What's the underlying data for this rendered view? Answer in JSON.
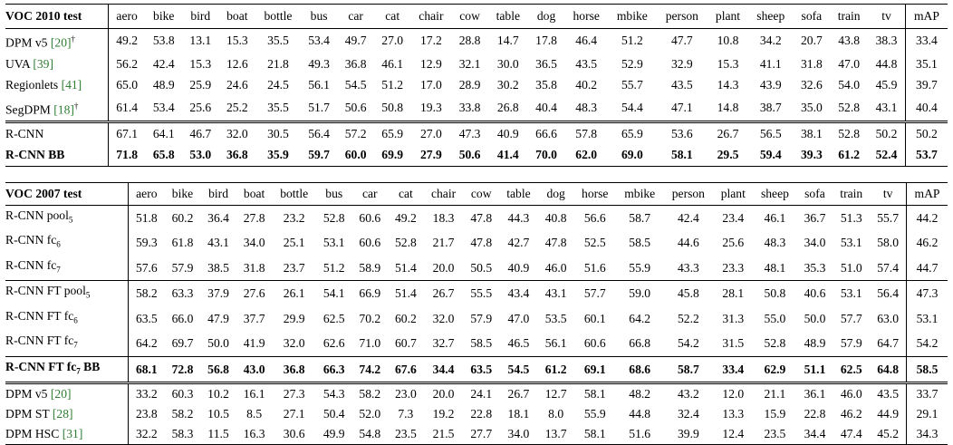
{
  "table1": {
    "title": "VOC 2010 test",
    "columns": [
      "aero",
      "bike",
      "bird",
      "boat",
      "bottle",
      "bus",
      "car",
      "cat",
      "chair",
      "cow",
      "table",
      "dog",
      "horse",
      "mbike",
      "person",
      "plant",
      "sheep",
      "sofa",
      "train",
      "tv"
    ],
    "map_label": "mAP",
    "rows": [
      {
        "method": "DPM v5",
        "ref": "[20]",
        "mark": "†",
        "values": [
          "49.2",
          "53.8",
          "13.1",
          "15.3",
          "35.5",
          "53.4",
          "49.7",
          "27.0",
          "17.2",
          "28.8",
          "14.7",
          "17.8",
          "46.4",
          "51.2",
          "47.7",
          "10.8",
          "34.2",
          "20.7",
          "43.8",
          "38.3"
        ],
        "map": "33.4"
      },
      {
        "method": "UVA",
        "ref": "[39]",
        "mark": "",
        "values": [
          "56.2",
          "42.4",
          "15.3",
          "12.6",
          "21.8",
          "49.3",
          "36.8",
          "46.1",
          "12.9",
          "32.1",
          "30.0",
          "36.5",
          "43.5",
          "52.9",
          "32.9",
          "15.3",
          "41.1",
          "31.8",
          "47.0",
          "44.8"
        ],
        "map": "35.1"
      },
      {
        "method": "Regionlets",
        "ref": "[41]",
        "mark": "",
        "values": [
          "65.0",
          "48.9",
          "25.9",
          "24.6",
          "24.5",
          "56.1",
          "54.5",
          "51.2",
          "17.0",
          "28.9",
          "30.2",
          "35.8",
          "40.2",
          "55.7",
          "43.5",
          "14.3",
          "43.9",
          "32.6",
          "54.0",
          "45.9"
        ],
        "map": "39.7"
      },
      {
        "method": "SegDPM",
        "ref": "[18]",
        "mark": "†",
        "values": [
          "61.4",
          "53.4",
          "25.6",
          "25.2",
          "35.5",
          "51.7",
          "50.6",
          "50.8",
          "19.3",
          "33.8",
          "26.8",
          "40.4",
          "48.3",
          "54.4",
          "47.1",
          "14.8",
          "38.7",
          "35.0",
          "52.8",
          "43.1"
        ],
        "map": "40.4"
      },
      {
        "method": "R-CNN",
        "ref": "",
        "mark": "",
        "values": [
          "67.1",
          "64.1",
          "46.7",
          "32.0",
          "30.5",
          "56.4",
          "57.2",
          "65.9",
          "27.0",
          "47.3",
          "40.9",
          "66.6",
          "57.8",
          "65.9",
          "53.6",
          "26.7",
          "56.5",
          "38.1",
          "52.8",
          "50.2"
        ],
        "map": "50.2"
      },
      {
        "method": "R-CNN BB",
        "ref": "",
        "mark": "",
        "values": [
          "71.8",
          "65.8",
          "53.0",
          "36.8",
          "35.9",
          "59.7",
          "60.0",
          "69.9",
          "27.9",
          "50.6",
          "41.4",
          "70.0",
          "62.0",
          "69.0",
          "58.1",
          "29.5",
          "59.4",
          "39.3",
          "61.2",
          "52.4"
        ],
        "map": "53.7"
      }
    ]
  },
  "table2": {
    "title": "VOC 2007 test",
    "columns": [
      "aero",
      "bike",
      "bird",
      "boat",
      "bottle",
      "bus",
      "car",
      "cat",
      "chair",
      "cow",
      "table",
      "dog",
      "horse",
      "mbike",
      "person",
      "plant",
      "sheep",
      "sofa",
      "train",
      "tv"
    ],
    "map_label": "mAP",
    "rows": [
      {
        "method": "R-CNN pool",
        "sub": "5",
        "ref": "",
        "values": [
          "51.8",
          "60.2",
          "36.4",
          "27.8",
          "23.2",
          "52.8",
          "60.6",
          "49.2",
          "18.3",
          "47.8",
          "44.3",
          "40.8",
          "56.6",
          "58.7",
          "42.4",
          "23.4",
          "46.1",
          "36.7",
          "51.3",
          "55.7"
        ],
        "map": "44.2"
      },
      {
        "method": "R-CNN fc",
        "sub": "6",
        "ref": "",
        "values": [
          "59.3",
          "61.8",
          "43.1",
          "34.0",
          "25.1",
          "53.1",
          "60.6",
          "52.8",
          "21.7",
          "47.8",
          "42.7",
          "47.8",
          "52.5",
          "58.5",
          "44.6",
          "25.6",
          "48.3",
          "34.0",
          "53.1",
          "58.0"
        ],
        "map": "46.2"
      },
      {
        "method": "R-CNN fc",
        "sub": "7",
        "ref": "",
        "values": [
          "57.6",
          "57.9",
          "38.5",
          "31.8",
          "23.7",
          "51.2",
          "58.9",
          "51.4",
          "20.0",
          "50.5",
          "40.9",
          "46.0",
          "51.6",
          "55.9",
          "43.3",
          "23.3",
          "48.1",
          "35.3",
          "51.0",
          "57.4"
        ],
        "map": "44.7"
      },
      {
        "method": "R-CNN FT pool",
        "sub": "5",
        "ref": "",
        "values": [
          "58.2",
          "63.3",
          "37.9",
          "27.6",
          "26.1",
          "54.1",
          "66.9",
          "51.4",
          "26.7",
          "55.5",
          "43.4",
          "43.1",
          "57.7",
          "59.0",
          "45.8",
          "28.1",
          "50.8",
          "40.6",
          "53.1",
          "56.4"
        ],
        "map": "47.3"
      },
      {
        "method": "R-CNN FT fc",
        "sub": "6",
        "ref": "",
        "values": [
          "63.5",
          "66.0",
          "47.9",
          "37.7",
          "29.9",
          "62.5",
          "70.2",
          "60.2",
          "32.0",
          "57.9",
          "47.0",
          "53.5",
          "60.1",
          "64.2",
          "52.2",
          "31.3",
          "55.0",
          "50.0",
          "57.7",
          "63.0"
        ],
        "map": "53.1"
      },
      {
        "method": "R-CNN FT fc",
        "sub": "7",
        "ref": "",
        "values": [
          "64.2",
          "69.7",
          "50.0",
          "41.9",
          "32.0",
          "62.6",
          "71.0",
          "60.7",
          "32.7",
          "58.5",
          "46.5",
          "56.1",
          "60.6",
          "66.8",
          "54.2",
          "31.5",
          "52.8",
          "48.9",
          "57.9",
          "64.7"
        ],
        "map": "54.2"
      },
      {
        "method": "R-CNN FT fc",
        "sub": "7",
        "suffix": " BB",
        "ref": "",
        "values": [
          "68.1",
          "72.8",
          "56.8",
          "43.0",
          "36.8",
          "66.3",
          "74.2",
          "67.6",
          "34.4",
          "63.5",
          "54.5",
          "61.2",
          "69.1",
          "68.6",
          "58.7",
          "33.4",
          "62.9",
          "51.1",
          "62.5",
          "64.8"
        ],
        "map": "58.5"
      },
      {
        "method": "DPM v5",
        "ref": "[20]",
        "values": [
          "33.2",
          "60.3",
          "10.2",
          "16.1",
          "27.3",
          "54.3",
          "58.2",
          "23.0",
          "20.0",
          "24.1",
          "26.7",
          "12.7",
          "58.1",
          "48.2",
          "43.2",
          "12.0",
          "21.1",
          "36.1",
          "46.0",
          "43.5"
        ],
        "map": "33.7"
      },
      {
        "method": "DPM ST",
        "ref": "[28]",
        "values": [
          "23.8",
          "58.2",
          "10.5",
          "8.5",
          "27.1",
          "50.4",
          "52.0",
          "7.3",
          "19.2",
          "22.8",
          "18.1",
          "8.0",
          "55.9",
          "44.8",
          "32.4",
          "13.3",
          "15.9",
          "22.8",
          "46.2",
          "44.9"
        ],
        "map": "29.1"
      },
      {
        "method": "DPM HSC",
        "ref": "[31]",
        "values": [
          "32.2",
          "58.3",
          "11.5",
          "16.3",
          "30.6",
          "49.9",
          "54.8",
          "23.5",
          "21.5",
          "27.7",
          "34.0",
          "13.7",
          "58.1",
          "51.6",
          "39.9",
          "12.4",
          "23.5",
          "34.4",
          "47.4",
          "45.2"
        ],
        "map": "34.3"
      }
    ]
  }
}
